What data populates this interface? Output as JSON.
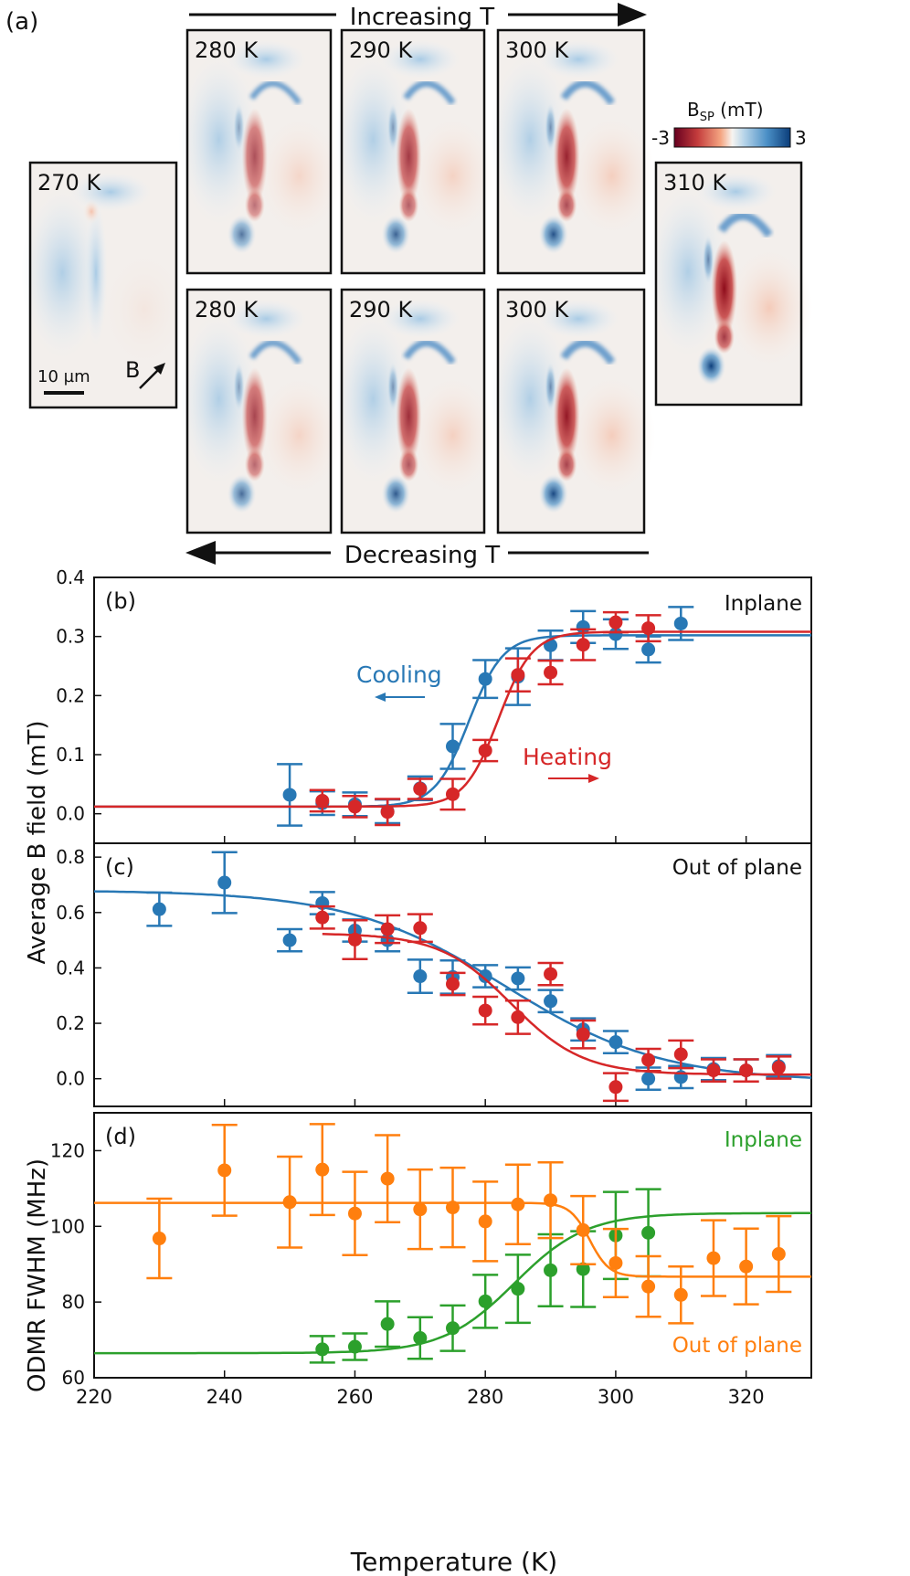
{
  "panel_a": {
    "label": "(a)",
    "increasing_label": "Increasing T",
    "decreasing_label": "Decreasing T",
    "colorbar": {
      "title": "B",
      "subscript": "SP",
      "unit": " (mT)",
      "min_label": "-3",
      "max_label": "3",
      "min": -3,
      "max": 3,
      "low_color": "#b2182b",
      "high_color": "#1f5fa8"
    },
    "scale_bar": "10 µm",
    "field_label": "B",
    "maps": [
      {
        "label": "270 K",
        "row": "start",
        "intensity": 0.25
      },
      {
        "label": "280 K",
        "row": "heating",
        "intensity": 0.7
      },
      {
        "label": "290 K",
        "row": "heating",
        "intensity": 0.8
      },
      {
        "label": "300 K",
        "row": "heating",
        "intensity": 0.9
      },
      {
        "label": "310 K",
        "row": "end",
        "intensity": 1.0
      },
      {
        "label": "280 K",
        "row": "cooling",
        "intensity": 0.75
      },
      {
        "label": "290 K",
        "row": "cooling",
        "intensity": 0.85
      },
      {
        "label": "300 K",
        "row": "cooling",
        "intensity": 0.95
      }
    ]
  },
  "axes": {
    "xlabel": "Temperature (K)",
    "ylabel_bc": "Average B field (mT)",
    "xlim": [
      220,
      330
    ],
    "xticks": [
      "220",
      "240",
      "260",
      "280",
      "300",
      "320"
    ]
  },
  "chart_data": [
    {
      "type": "scatter",
      "panel": "(b)",
      "title": "Inplane",
      "ylim": [
        -0.05,
        0.4
      ],
      "yticks": [
        "0.0",
        "0.1",
        "0.2",
        "0.3",
        "0.4"
      ],
      "annotations": {
        "cooling": "Cooling",
        "heating": "Heating"
      },
      "series": [
        {
          "name": "Cooling",
          "color": "#2878b5",
          "x": [
            250,
            255,
            260,
            265,
            270,
            275,
            280,
            285,
            290,
            295,
            300,
            305,
            310
          ],
          "y": [
            0.032,
            0.018,
            0.016,
            0.004,
            0.043,
            0.114,
            0.228,
            0.232,
            0.285,
            0.316,
            0.304,
            0.278,
            0.322
          ],
          "err": [
            0.052,
            0.02,
            0.02,
            0.02,
            0.02,
            0.038,
            0.032,
            0.048,
            0.025,
            0.027,
            0.025,
            0.022,
            0.028
          ],
          "fit": {
            "base": 0.012,
            "top": 0.302,
            "center": 277.5,
            "width": 2.6
          }
        },
        {
          "name": "Heating",
          "color": "#d62728",
          "x": [
            255,
            260,
            265,
            270,
            275,
            280,
            285,
            290,
            295,
            300,
            305
          ],
          "y": [
            0.022,
            0.012,
            0.003,
            0.042,
            0.033,
            0.107,
            0.235,
            0.239,
            0.286,
            0.324,
            0.314
          ],
          "err": [
            0.018,
            0.018,
            0.022,
            0.017,
            0.026,
            0.018,
            0.028,
            0.02,
            0.026,
            0.017,
            0.022
          ],
          "fit": {
            "base": 0.012,
            "top": 0.308,
            "center": 282.0,
            "width": 2.6
          }
        }
      ]
    },
    {
      "type": "scatter",
      "panel": "(c)",
      "title": "Out of plane",
      "ylim": [
        -0.1,
        0.85
      ],
      "yticks": [
        "0.0",
        "0.2",
        "0.4",
        "0.6",
        "0.8"
      ],
      "series": [
        {
          "name": "Cooling",
          "color": "#2878b5",
          "x": [
            230,
            240,
            250,
            255,
            260,
            265,
            270,
            275,
            280,
            285,
            290,
            295,
            300,
            305,
            310,
            315,
            320,
            325
          ],
          "y": [
            0.612,
            0.708,
            0.5,
            0.634,
            0.535,
            0.5,
            0.37,
            0.367,
            0.37,
            0.362,
            0.28,
            0.178,
            0.132,
            0.0,
            0.006,
            0.035,
            0.03,
            0.045
          ],
          "err": [
            0.06,
            0.11,
            0.04,
            0.04,
            0.04,
            0.04,
            0.06,
            0.06,
            0.04,
            0.04,
            0.04,
            0.04,
            0.04,
            0.04,
            0.04,
            0.04,
            0.04,
            0.04
          ],
          "fit": {
            "base": -0.01,
            "top": 0.68,
            "center": 283.0,
            "width": 12.0
          }
        },
        {
          "name": "Heating",
          "color": "#d62728",
          "x": [
            255,
            260,
            265,
            270,
            275,
            280,
            285,
            290,
            295,
            300,
            305,
            310,
            315,
            320,
            325
          ],
          "y": [
            0.582,
            0.502,
            0.54,
            0.544,
            0.342,
            0.246,
            0.222,
            0.378,
            0.16,
            -0.03,
            0.068,
            0.088,
            0.03,
            0.03,
            0.04
          ],
          "err": [
            0.04,
            0.07,
            0.05,
            0.05,
            0.04,
            0.05,
            0.06,
            0.04,
            0.05,
            0.05,
            0.04,
            0.05,
            0.04,
            0.04,
            0.04
          ],
          "fit": {
            "base": 0.015,
            "top": 0.525,
            "center": 284.0,
            "width": 5.5
          }
        }
      ]
    },
    {
      "type": "scatter",
      "panel": "(d)",
      "title": "Inplane",
      "title2": "Out of plane",
      "ylabel": "ODMR FWHM (MHz)",
      "ylim": [
        60,
        130
      ],
      "yticks": [
        "60",
        "80",
        "100",
        "120"
      ],
      "series": [
        {
          "name": "Inplane",
          "color": "#2ca02c",
          "x": [
            255,
            260,
            265,
            270,
            275,
            280,
            285,
            290,
            295,
            300,
            305
          ],
          "y": [
            67.5,
            68.2,
            74.2,
            70.5,
            73.1,
            80.2,
            83.5,
            88.4,
            88.7,
            97.6,
            98.3
          ],
          "err": [
            3.5,
            3.5,
            6,
            5.5,
            6,
            7,
            9,
            9.5,
            10,
            11.5,
            11.5
          ],
          "fit": {
            "base": 66.5,
            "top": 103.5,
            "center": 284.5,
            "width": 5.5
          }
        },
        {
          "name": "Out of plane",
          "color": "#ff7f0e",
          "x": [
            230,
            240,
            250,
            255,
            260,
            265,
            270,
            275,
            280,
            285,
            290,
            295,
            300,
            305,
            310,
            315,
            320,
            325
          ],
          "y": [
            96.8,
            114.8,
            106.4,
            115,
            103.4,
            112.6,
            104.5,
            105,
            101.3,
            105.8,
            106.9,
            99,
            90.3,
            84.1,
            81.9,
            91.6,
            89.4,
            92.7
          ],
          "err": [
            10.5,
            12,
            12,
            12,
            11,
            11.5,
            10.5,
            10.5,
            10.5,
            10.5,
            10,
            9,
            9,
            8,
            7.5,
            10,
            10,
            10
          ],
          "fit": {
            "base": 86.7,
            "top": 106.2,
            "center": 296.0,
            "width": 1.5
          }
        }
      ]
    }
  ]
}
